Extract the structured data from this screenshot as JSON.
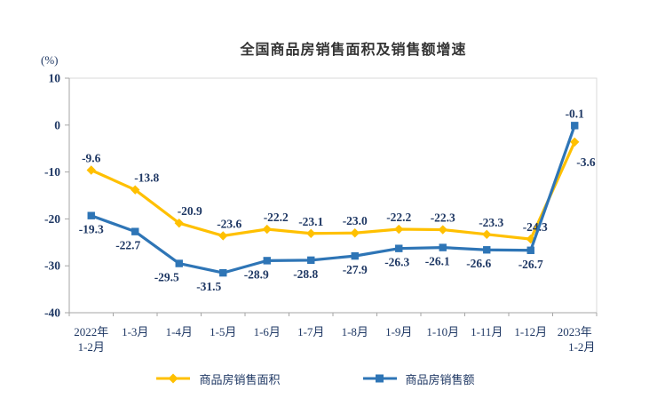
{
  "chart_data": {
    "type": "line",
    "title": "全国商品房销售面积及销售额增速",
    "y_unit_label": "(%)",
    "ylim": [
      -40,
      10
    ],
    "yticks": [
      "10",
      "0",
      "-10",
      "-20",
      "-30",
      "-40"
    ],
    "categories": [
      [
        "2022年",
        "1-2月"
      ],
      [
        "1-3月"
      ],
      [
        "1-4月"
      ],
      [
        "1-5月"
      ],
      [
        "1-6月"
      ],
      [
        "1-7月"
      ],
      [
        "1-8月"
      ],
      [
        "1-9月"
      ],
      [
        "1-10月"
      ],
      [
        "1-11月"
      ],
      [
        "1-12月"
      ],
      [
        "2023年",
        "1-2月"
      ]
    ],
    "series": [
      {
        "name": "商品房销售面积",
        "color": "#FFC000",
        "marker": "diamond",
        "values": [
          -9.6,
          -13.8,
          -20.9,
          -23.6,
          -22.2,
          -23.1,
          -23.0,
          -22.2,
          -22.3,
          -23.3,
          -24.3,
          -3.6
        ],
        "labels": [
          "-9.6",
          "-13.8",
          "-20.9",
          "-23.6",
          "-22.2",
          "-23.1",
          "-23.0",
          "-22.2",
          "-22.3",
          "-23.3",
          "-24.3",
          "-3.6"
        ]
      },
      {
        "name": "商品房销售额",
        "color": "#2E75B6",
        "marker": "square",
        "values": [
          -19.3,
          -22.7,
          -29.5,
          -31.5,
          -28.9,
          -28.8,
          -27.9,
          -26.3,
          -26.1,
          -26.6,
          -26.7,
          -0.1
        ],
        "labels": [
          "-19.3",
          "-22.7",
          "-29.5",
          "-31.5",
          "-28.9",
          "-28.8",
          "-27.9",
          "-26.3",
          "-26.1",
          "-26.6",
          "-26.7",
          "-0.1"
        ]
      }
    ],
    "legend_position": "bottom",
    "grid": false,
    "text_color": "#1F3864",
    "axis_color": "#A6A6A6",
    "border_color": "#D9D9D9",
    "title_color": "#333333"
  }
}
